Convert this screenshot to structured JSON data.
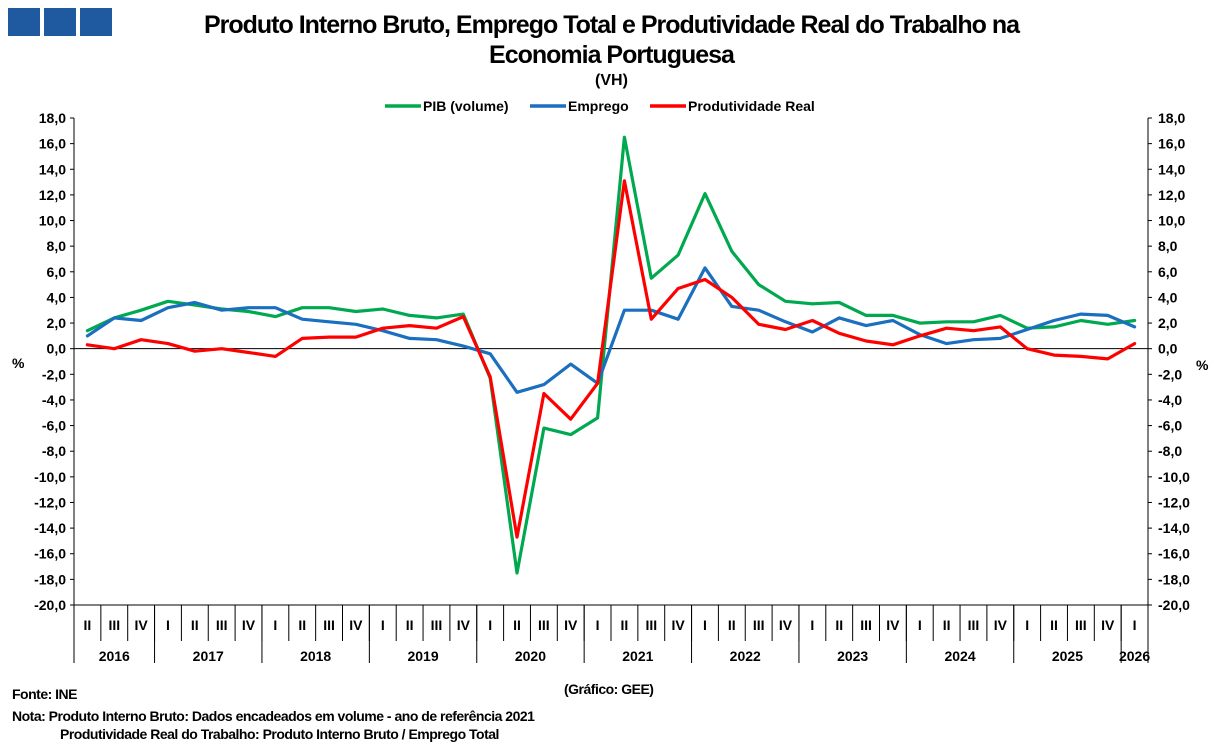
{
  "header": {
    "title_line1": "Produto Interno Bruto, Emprego Total e Produtividade Real do Trabalho na",
    "title_line2": "Economia Portuguesa",
    "subtitle": "(VH)"
  },
  "footer": {
    "source": "Fonte: INE",
    "credit": "(Gráfico: GEE)",
    "note1": "Nota: Produto Interno Bruto: Dados encadeados em volume - ano de referência 2021",
    "note2": "Produtividade Real do Trabalho: Produto Interno Bruto / Emprego Total"
  },
  "chart_data": {
    "type": "line",
    "ylabel": "%",
    "y2label": "%",
    "ylim": [
      -20,
      18
    ],
    "ytick_step": 2,
    "ytick_labels": [
      "18,0",
      "16,0",
      "14,0",
      "12,0",
      "10,0",
      "8,0",
      "6,0",
      "4,0",
      "2,0",
      "0,0",
      "-2,0",
      "-4,0",
      "-6,0",
      "-8,0",
      "-10,0",
      "-12,0",
      "-14,0",
      "-16,0",
      "-18,0",
      "-20,0"
    ],
    "grid": false,
    "legend_position": "top",
    "quarters": [
      "II",
      "III",
      "IV",
      "I",
      "II",
      "III",
      "IV",
      "I",
      "II",
      "III",
      "IV",
      "I",
      "II",
      "III",
      "IV",
      "I",
      "II",
      "III",
      "IV",
      "I",
      "II",
      "III",
      "IV",
      "I",
      "II",
      "III",
      "IV",
      "I",
      "II",
      "III",
      "IV",
      "I",
      "II",
      "III",
      "IV",
      "I",
      "II",
      "III",
      "IV",
      "I"
    ],
    "years": [
      {
        "label": "2016",
        "count": 3
      },
      {
        "label": "2017",
        "count": 4
      },
      {
        "label": "2018",
        "count": 4
      },
      {
        "label": "2019",
        "count": 4
      },
      {
        "label": "2020",
        "count": 4
      },
      {
        "label": "2021",
        "count": 4
      },
      {
        "label": "2022",
        "count": 4
      },
      {
        "label": "2023",
        "count": 4
      },
      {
        "label": "2024",
        "count": 4
      },
      {
        "label": "2025",
        "count": 4
      },
      {
        "label": "2026",
        "count": 1
      }
    ],
    "series": [
      {
        "name": "PIB (volume)",
        "color": "#00a84f",
        "values": [
          1.4,
          2.4,
          3.0,
          3.7,
          3.4,
          3.1,
          2.9,
          2.5,
          3.2,
          3.2,
          2.9,
          3.1,
          2.6,
          2.4,
          2.7,
          -2.3,
          -17.5,
          -6.2,
          -6.7,
          -5.4,
          16.5,
          5.5,
          7.3,
          12.1,
          7.6,
          5.0,
          3.7,
          3.5,
          3.6,
          2.6,
          2.6,
          2.0,
          2.1,
          2.1,
          2.6,
          1.6,
          1.7,
          2.2,
          1.9,
          2.2
        ]
      },
      {
        "name": "Emprego",
        "color": "#1a6fbf",
        "values": [
          1.0,
          2.4,
          2.2,
          3.2,
          3.6,
          3.0,
          3.2,
          3.2,
          2.3,
          2.1,
          1.9,
          1.4,
          0.8,
          0.7,
          0.2,
          -0.4,
          -3.4,
          -2.8,
          -1.2,
          -2.7,
          3.0,
          3.0,
          2.3,
          6.3,
          3.3,
          3.0,
          2.1,
          1.3,
          2.4,
          1.8,
          2.2,
          1.1,
          0.4,
          0.7,
          0.8,
          1.5,
          2.2,
          2.7,
          2.6,
          1.7
        ]
      },
      {
        "name": "Produtividade Real",
        "color": "#ff0000",
        "values": [
          0.3,
          0.0,
          0.7,
          0.4,
          -0.2,
          0.0,
          -0.3,
          -0.6,
          0.8,
          0.9,
          0.9,
          1.6,
          1.8,
          1.6,
          2.5,
          -2.2,
          -14.7,
          -3.5,
          -5.5,
          -2.7,
          13.1,
          2.3,
          4.7,
          5.4,
          4.0,
          1.9,
          1.5,
          2.2,
          1.2,
          0.6,
          0.3,
          1.0,
          1.6,
          1.4,
          1.7,
          0.0,
          -0.5,
          -0.6,
          -0.8,
          0.4
        ]
      }
    ]
  }
}
